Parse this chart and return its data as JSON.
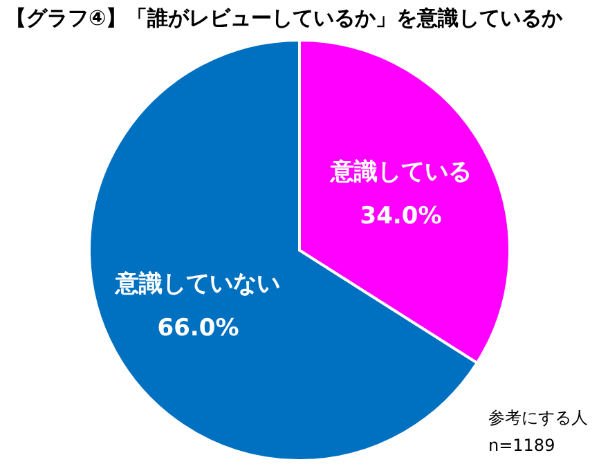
{
  "chart_data": {
    "type": "pie",
    "title": "【グラフ④】「誰がレビューしているか」を意識しているか",
    "categories": [
      "意識している",
      "意識していない"
    ],
    "values": [
      34.0,
      66.0
    ],
    "value_labels": [
      "34.0%",
      "66.0%"
    ],
    "colors": [
      "#ff00ff",
      "#0070c0"
    ],
    "annotations": [
      "参考にする人",
      "n=1189"
    ]
  }
}
